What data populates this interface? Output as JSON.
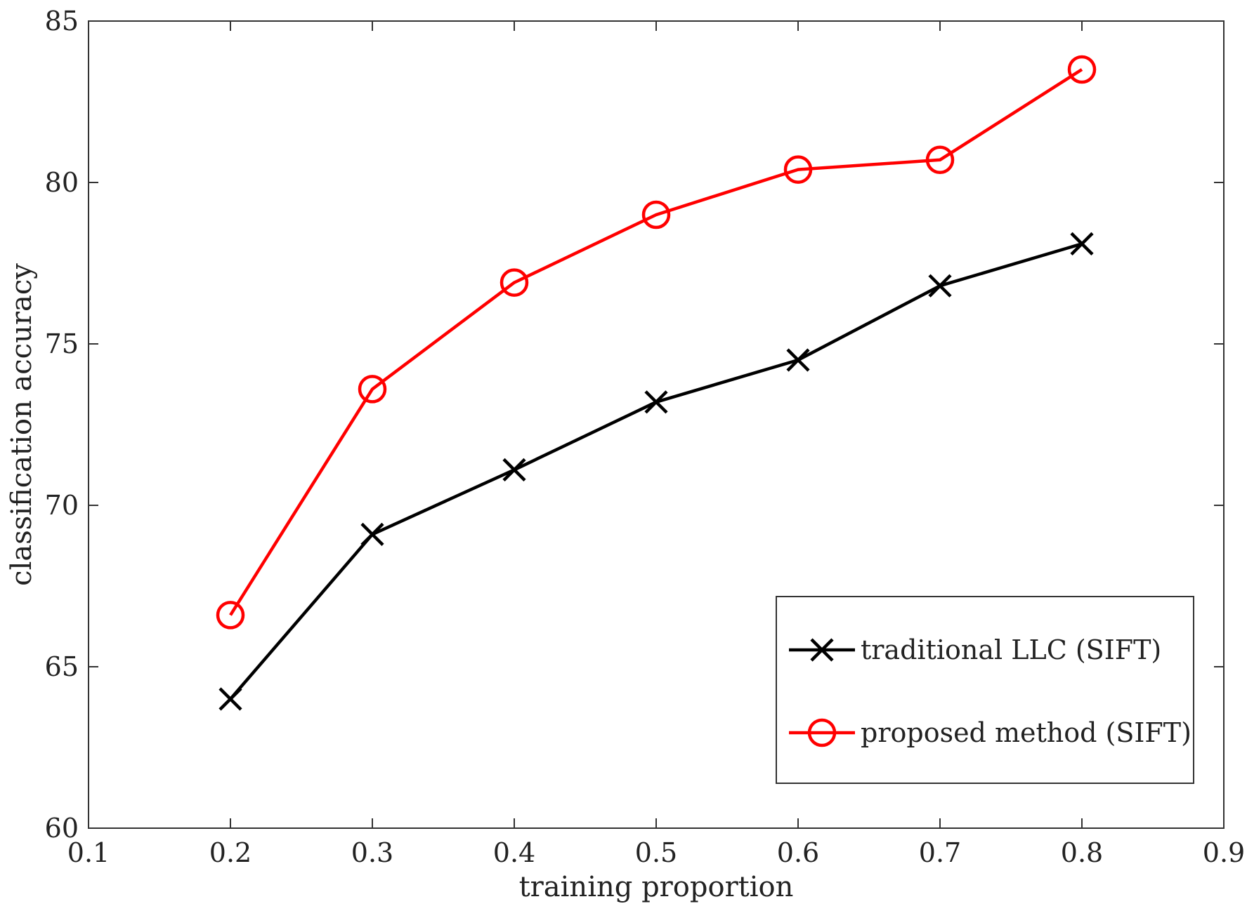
{
  "chart_data": {
    "type": "line",
    "title": "",
    "xlabel": "training proportion",
    "ylabel": "classification accuracy",
    "xlim": [
      0.1,
      0.9
    ],
    "ylim": [
      60,
      85
    ],
    "xticks": [
      0.1,
      0.2,
      0.3,
      0.4,
      0.5,
      0.6,
      0.7,
      0.8,
      0.9
    ],
    "xtick_labels": [
      "0.1",
      "0.2",
      "0.3",
      "0.4",
      "0.5",
      "0.6",
      "0.7",
      "0.8",
      "0.9"
    ],
    "yticks": [
      60,
      65,
      70,
      75,
      80,
      85
    ],
    "ytick_labels": [
      "60",
      "65",
      "70",
      "75",
      "80",
      "85"
    ],
    "grid": false,
    "legend_position": "bottom-right",
    "x": [
      0.2,
      0.3,
      0.4,
      0.5,
      0.6,
      0.7,
      0.8
    ],
    "series": [
      {
        "name": "traditional LLC (SIFT)",
        "color": "#000000",
        "marker": "x",
        "values": [
          64.0,
          69.1,
          71.1,
          73.2,
          74.5,
          76.8,
          78.1
        ]
      },
      {
        "name": "proposed method (SIFT)",
        "color": "#ff0000",
        "marker": "o",
        "values": [
          66.6,
          73.6,
          76.9,
          79.0,
          80.4,
          80.7,
          83.5
        ]
      }
    ]
  }
}
